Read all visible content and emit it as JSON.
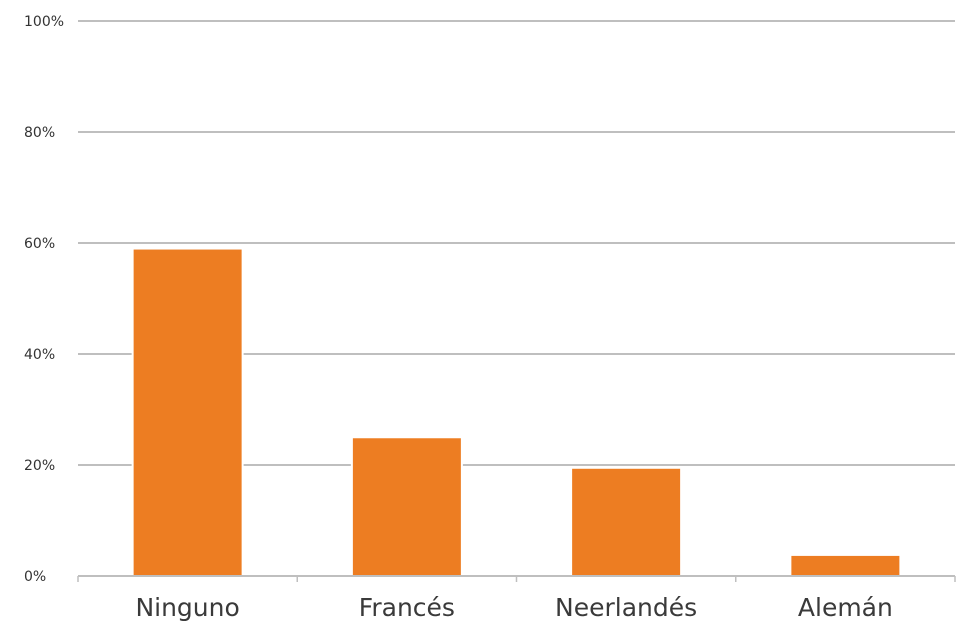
{
  "chart_data": {
    "type": "bar",
    "categories": [
      "Ninguno",
      "Francés",
      "Neerlandés",
      "Alemán"
    ],
    "values": [
      59,
      25,
      19.5,
      3.8
    ],
    "title": "",
    "xlabel": "",
    "ylabel": "",
    "ylim": [
      0,
      100
    ],
    "yticks": [
      0,
      20,
      40,
      60,
      80,
      100
    ],
    "ytick_labels": [
      "0%",
      "20%",
      "40%",
      "60%",
      "80%",
      "100%"
    ],
    "grid": true,
    "legend": "none",
    "bar_color": "#ED7D22"
  }
}
